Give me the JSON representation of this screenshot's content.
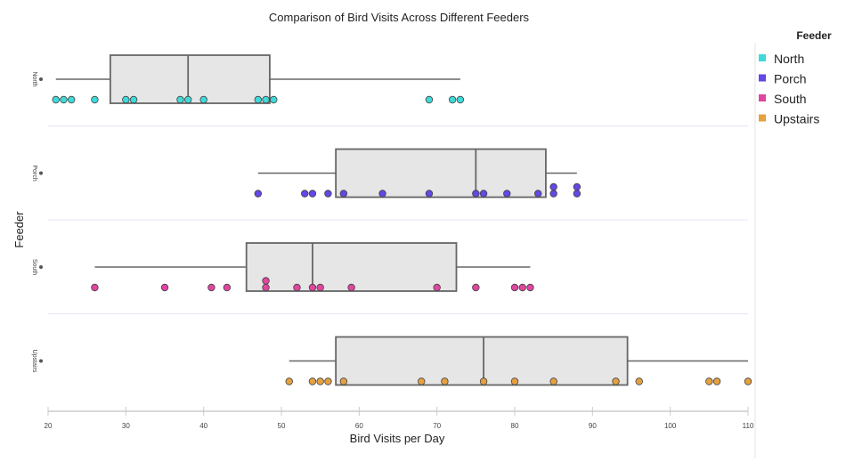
{
  "chart_data": {
    "type": "box",
    "title": "Comparison of Bird Visits Across Different Feeders",
    "xlabel": "Bird Visits per Day",
    "ylabel": "Feeder",
    "xlim": [
      20,
      110
    ],
    "xticks": [
      20,
      30,
      40,
      50,
      60,
      70,
      80,
      90,
      100,
      110
    ],
    "orientation": "horizontal",
    "legend": {
      "title": "Feeder",
      "placement": "right"
    },
    "categories": [
      "North",
      "Porch",
      "South",
      "Upstairs"
    ],
    "series": [
      {
        "name": "North",
        "color": "#3fd9d9",
        "box": {
          "min": 21,
          "q1": 28,
          "median": 38,
          "q3": 48.5,
          "max": 73
        },
        "points": [
          21,
          22,
          23,
          26,
          30,
          31,
          37,
          38,
          40,
          47,
          48,
          49,
          69,
          72,
          73
        ]
      },
      {
        "name": "Porch",
        "color": "#6546e6",
        "box": {
          "min": 47,
          "q1": 57,
          "median": 75,
          "q3": 84,
          "max": 88
        },
        "points": [
          47,
          53,
          54,
          56,
          58,
          63,
          69,
          75,
          76,
          79,
          83,
          85,
          85,
          88,
          88
        ]
      },
      {
        "name": "South",
        "color": "#e0459f",
        "box": {
          "min": 26,
          "q1": 45.5,
          "median": 54,
          "q3": 72.5,
          "max": 82
        },
        "points": [
          26,
          35,
          41,
          43,
          48,
          48,
          52,
          54,
          55,
          59,
          70,
          75,
          80,
          81,
          82
        ]
      },
      {
        "name": "Upstairs",
        "color": "#e6a040",
        "box": {
          "min": 51,
          "q1": 57,
          "median": 76,
          "q3": 94.5,
          "max": 110
        },
        "points": [
          51,
          54,
          55,
          56,
          58,
          68,
          71,
          76,
          80,
          85,
          93,
          96,
          105,
          106,
          110
        ]
      }
    ]
  }
}
